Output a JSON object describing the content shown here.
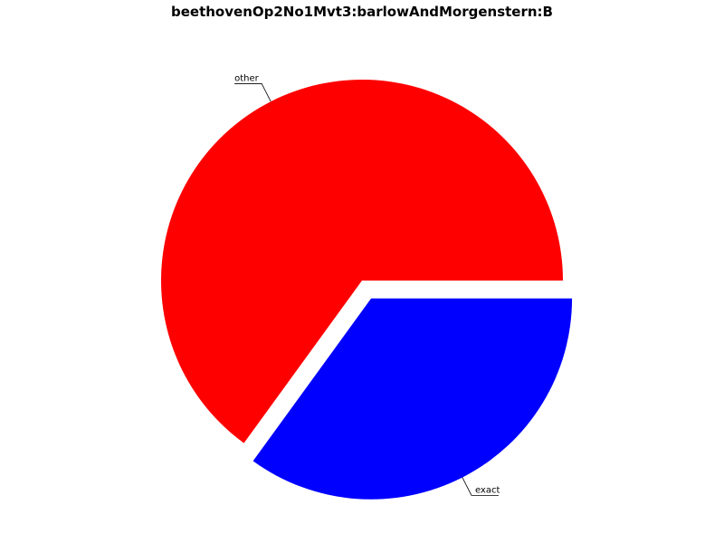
{
  "chart_data": {
    "type": "pie",
    "title": "beethovenOp2No1Mvt3:barlowAndMorgenstern:B",
    "slices": [
      {
        "label": "other",
        "value": 0.65,
        "color": "#ff0000",
        "explode": 0
      },
      {
        "label": "exact",
        "value": 0.35,
        "color": "#0000ff",
        "explode": 0.1
      }
    ],
    "start_angle": "0 degrees (3 o'clock)",
    "direction": "clockwise",
    "legend": "none"
  }
}
